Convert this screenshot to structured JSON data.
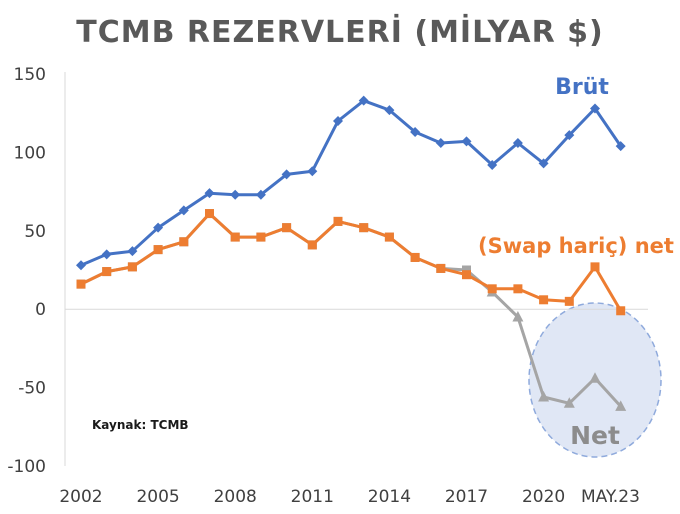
{
  "chart_data": {
    "type": "line",
    "title": "TCMB REZERVLERİ (MİLYAR $)",
    "source_note": "Kaynak: TCMB",
    "x_tick_labels": [
      "2002",
      "2005",
      "2008",
      "2011",
      "2014",
      "2017",
      "2020",
      "MAY.23"
    ],
    "y_ticks": [
      150,
      100,
      50,
      0,
      -50,
      -100
    ],
    "ylim": [
      -100,
      150
    ],
    "grid": false,
    "x": [
      "2002",
      "2003",
      "2004",
      "2005",
      "2006",
      "2007",
      "2008",
      "2009",
      "2010",
      "2011",
      "2012",
      "2013",
      "2014",
      "2015",
      "2016",
      "2017",
      "2018",
      "2019",
      "2020",
      "2021",
      "2022",
      "MAY.23"
    ],
    "series": [
      {
        "name": "Brüt",
        "color": "#4472c4",
        "marker": "diamond",
        "values": [
          28,
          35,
          37,
          52,
          63,
          74,
          73,
          73,
          86,
          88,
          120,
          133,
          127,
          113,
          106,
          107,
          92,
          106,
          93,
          111,
          128,
          104
        ]
      },
      {
        "name": "(Swap hariç) net",
        "color": "#ed7d31",
        "marker": "square",
        "values": [
          16,
          24,
          27,
          38,
          43,
          61,
          46,
          46,
          52,
          41,
          56,
          52,
          46,
          33,
          26,
          22,
          13,
          13,
          6,
          5,
          27,
          -1
        ]
      },
      {
        "name": "Net",
        "color": "#a5a5a5",
        "marker": "square",
        "values": [
          16,
          24,
          27,
          38,
          43,
          61,
          46,
          46,
          52,
          41,
          56,
          52,
          46,
          33,
          26,
          25,
          11,
          -5,
          -56,
          -60,
          -44,
          -62
        ],
        "marker_after_index": "triangle",
        "triangle_from": 16
      }
    ],
    "annotations": {
      "gross_label": "Brüt",
      "swap_net_label": "(Swap hariç) net",
      "net_label": "Net"
    }
  }
}
